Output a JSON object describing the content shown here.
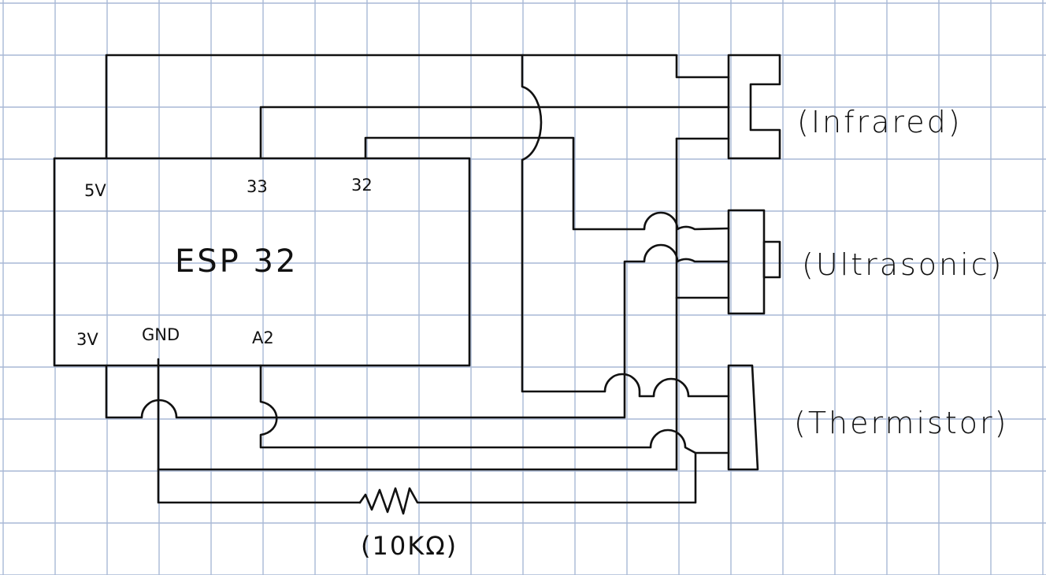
{
  "esp32": {
    "title": "ESP 32",
    "pins_top": {
      "p5v": "5V",
      "p33": "33",
      "p32": "32"
    },
    "pins_bottom": {
      "p3v": "3V",
      "gnd": "GND",
      "a2": "A2"
    }
  },
  "components": {
    "infrared": "(Infrared)",
    "ultrasonic": "(Ultrasonic)",
    "thermistor": "(Thermistor)"
  },
  "resistor": {
    "label": "(10KΩ)"
  },
  "colors": {
    "ink": "#111111",
    "grid": "#a9b9d6",
    "paper": "#ffffff"
  }
}
